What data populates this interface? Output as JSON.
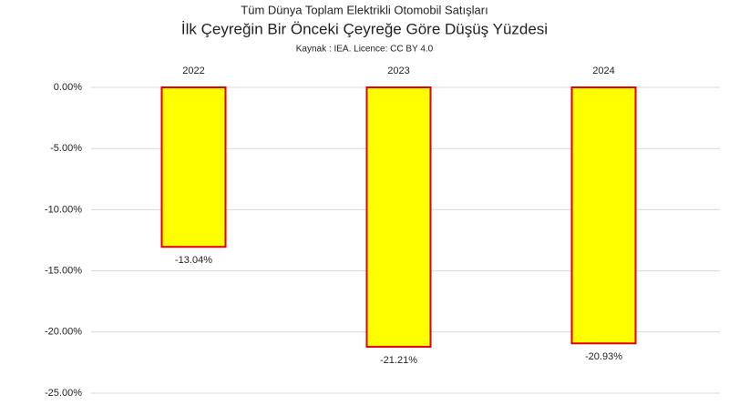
{
  "chart_data": {
    "type": "bar",
    "title": "Tüm Dünya Toplam Elektrikli Otomobil Satışları",
    "subtitle": "İlk Çeyreğin Bir Önceki Çeyreğe Göre Düşüş Yüzdesi",
    "source": "Kaynak : IEA. Licence: CC BY 4.0",
    "categories": [
      "2022",
      "2023",
      "2024"
    ],
    "values": [
      -13.04,
      -21.21,
      -20.93
    ],
    "value_labels": [
      "-13.04%",
      "-21.21%",
      "-20.93%"
    ],
    "color": "#ffff00",
    "edge_color": "#e00000",
    "ylim": [
      -25,
      0
    ],
    "yticks": [
      {
        "value": 0,
        "label": "0.00%"
      },
      {
        "value": -5,
        "label": "-5.00%"
      },
      {
        "value": -10,
        "label": "-10.00%"
      },
      {
        "value": -15,
        "label": "-15.00%"
      },
      {
        "value": -20,
        "label": "-20.00%"
      },
      {
        "value": -25,
        "label": "-25.00%"
      }
    ],
    "grid": true
  }
}
